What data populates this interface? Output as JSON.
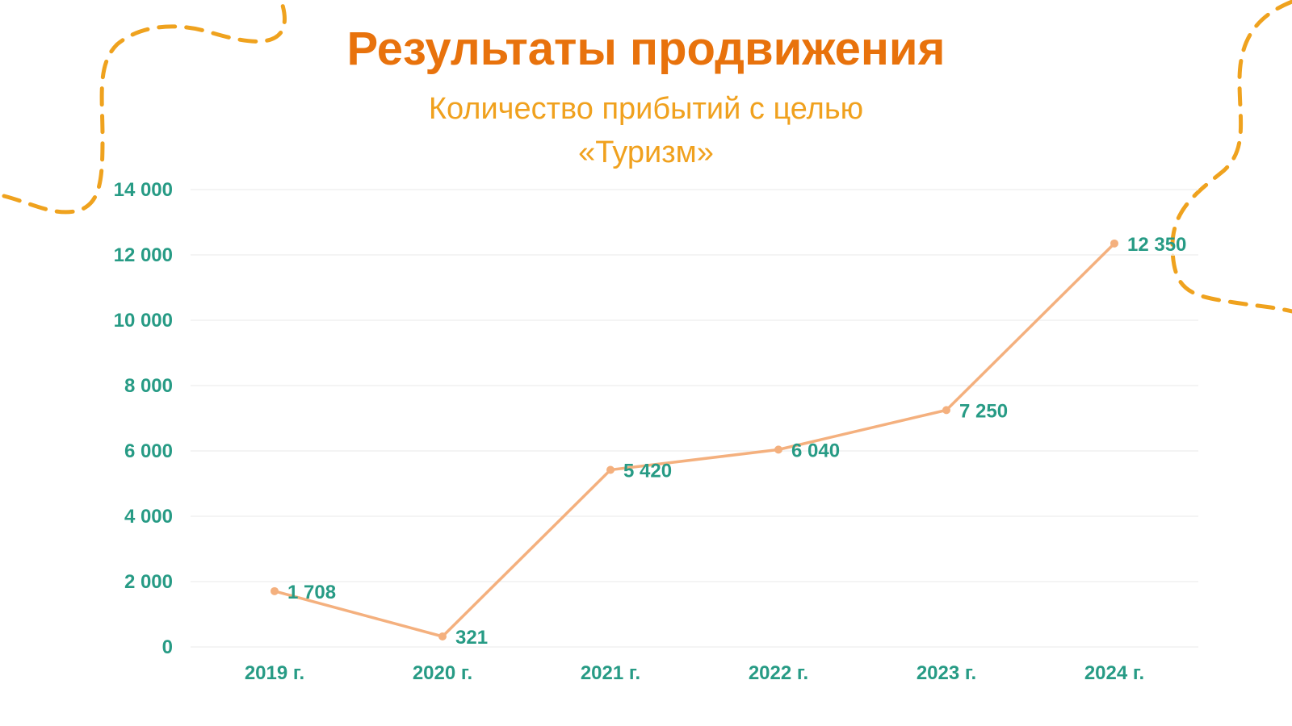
{
  "slide": {
    "title": "Результаты продвижения"
  },
  "colors": {
    "title": "#E8720C",
    "chart_title": "#F0A11E",
    "axis_text": "#279B85",
    "line": "#F4B07E",
    "marker": "#F4B07E",
    "grid": "#F1F1F1",
    "decoration": "#EFA21E"
  },
  "chart_data": {
    "type": "line",
    "title_lines": [
      "Количество прибытий с целью",
      "«Туризм»"
    ],
    "categories": [
      "2019 г.",
      "2020 г.",
      "2021 г.",
      "2022 г.",
      "2023 г.",
      "2024 г."
    ],
    "series": [
      {
        "values": [
          1708,
          321,
          5420,
          6040,
          7250,
          12350
        ],
        "data_labels": [
          "1 708",
          "321",
          "5 420",
          "6 040",
          "7 250",
          "12 350"
        ]
      }
    ],
    "ylim": [
      0,
      14000
    ],
    "yticks": [
      0,
      2000,
      4000,
      6000,
      8000,
      10000,
      12000,
      14000
    ],
    "ytick_labels": [
      "0",
      "2 000",
      "4 000",
      "6 000",
      "8 000",
      "10 000",
      "12 000",
      "14 000"
    ],
    "grid": true,
    "legend": "none",
    "markers": true
  }
}
